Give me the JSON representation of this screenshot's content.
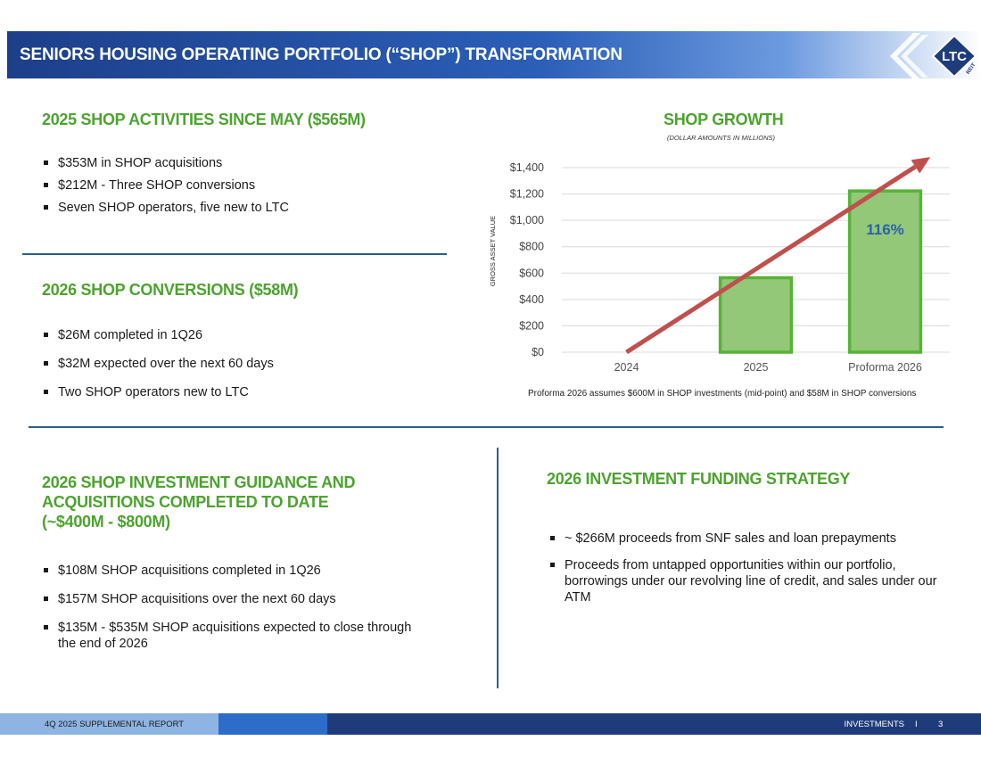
{
  "header": {
    "title": "SENIORS HOUSING OPERATING PORTFOLIO (“SHOP”) TRANSFORMATION",
    "logo_text": "LTC",
    "logo_subtext": "REIT"
  },
  "sections": {
    "activities": {
      "heading": "2025 SHOP ACTIVITIES SINCE MAY ($565M)",
      "bullets": [
        "$353M in SHOP acquisitions",
        "$212M - Three SHOP conversions",
        "Seven SHOP operators, five new to LTC"
      ]
    },
    "conversions": {
      "heading": "2026 SHOP CONVERSIONS ($58M)",
      "bullets": [
        "$26M completed in 1Q26",
        "$32M expected over the next 60 days",
        "Two SHOP operators new to LTC"
      ]
    },
    "guidance": {
      "heading_line1": "2026 SHOP INVESTMENT GUIDANCE AND",
      "heading_line2": "ACQUISITIONS COMPLETED TO DATE",
      "heading_line3": "(~$400M - $800M)",
      "bullets": [
        "$108M SHOP acquisitions completed in 1Q26",
        "$157M SHOP acquisitions over the next 60 days",
        "$135M - $535M SHOP acquisitions expected to close through the end of 2026"
      ]
    },
    "funding": {
      "heading": "2026 INVESTMENT FUNDING STRATEGY",
      "bullets": [
        "~ $266M proceeds from SNF sales and loan prepayments",
        "Proceeds from untapped opportunities within our portfolio, borrowings under our revolving line of credit, and sales under our ATM"
      ]
    }
  },
  "chart_data": {
    "type": "bar",
    "title": "SHOP GROWTH",
    "subtitle": "(DOLLAR AMOUNTS IN MILLIONS)",
    "ylabel": "GROSS ASSET VALUE",
    "xlabel": "",
    "categories": [
      "2024",
      "2025",
      "Proforma 2026"
    ],
    "values": [
      0,
      565,
      1223
    ],
    "ylim": [
      0,
      1400
    ],
    "yticks": [
      0,
      200,
      400,
      600,
      800,
      1000,
      1200,
      1400
    ],
    "ytick_labels": [
      "$0",
      "$200",
      "$400",
      "$600",
      "$800",
      "$1,000",
      "$1,200",
      "$1,400"
    ],
    "grid": true,
    "annotation": "116%",
    "trend_arrow": {
      "from": [
        0,
        0
      ],
      "to": [
        2.5,
        1480
      ]
    },
    "note": "Proforma 2026 assumes $600M in SHOP investments (mid-point) and $58M in SHOP conversions",
    "colors": {
      "bar_fill": "#92c878",
      "bar_stroke": "#56b336",
      "arrow": "#c0504d",
      "annotation": "#2e5fb0"
    }
  },
  "footer": {
    "report": "4Q 2025 SUPPLEMENTAL REPORT",
    "section": "INVESTMENTS",
    "separator": "I",
    "page": "3"
  }
}
